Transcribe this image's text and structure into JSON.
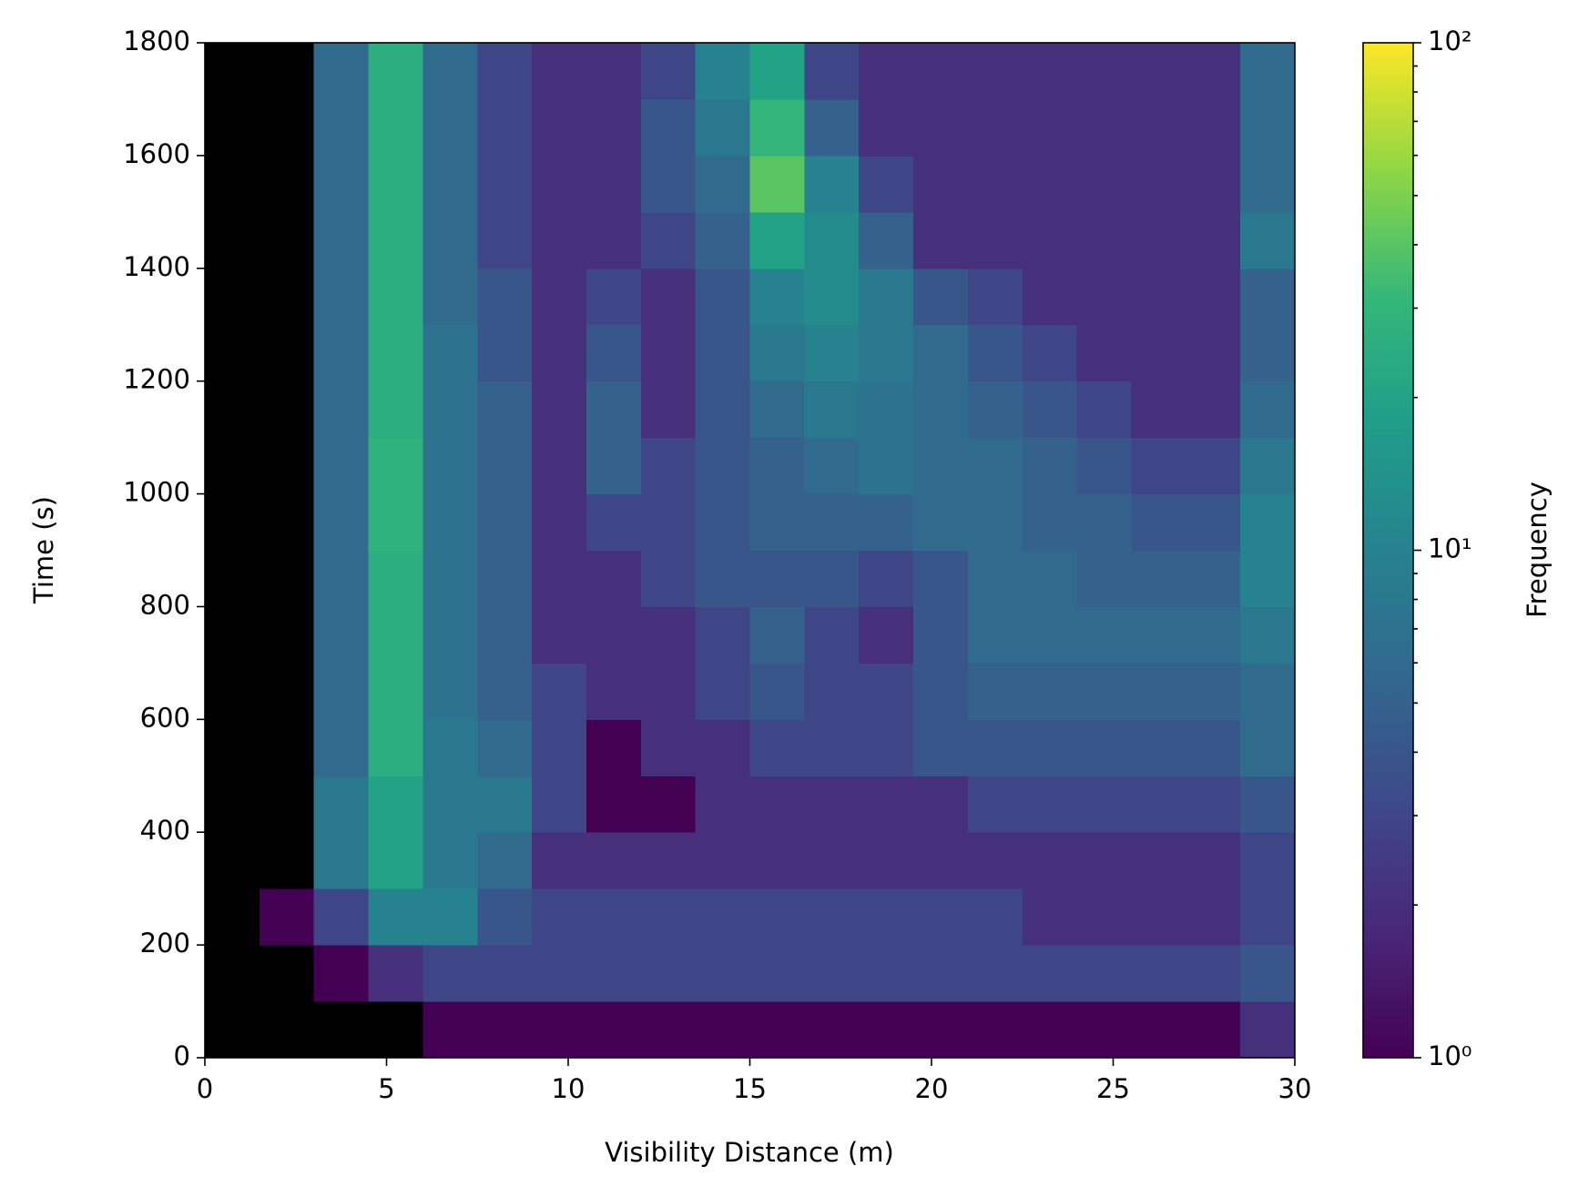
{
  "chart_data": {
    "type": "heatmap",
    "xlabel": "Visibility Distance (m)",
    "ylabel": "Time (s)",
    "xlim": [
      0,
      30
    ],
    "ylim": [
      0,
      1800
    ],
    "xticks": [
      0,
      5,
      10,
      15,
      20,
      25,
      30
    ],
    "yticks": [
      0,
      200,
      400,
      600,
      800,
      1000,
      1200,
      1400,
      1600,
      1800
    ],
    "x_edges": [
      0,
      1.5,
      3,
      4.5,
      6,
      7.5,
      9,
      10.5,
      12,
      13.5,
      15,
      16.5,
      18,
      19.5,
      21,
      22.5,
      24,
      25.5,
      27,
      28.5,
      30
    ],
    "y_edges": [
      0,
      100,
      200,
      300,
      400,
      500,
      600,
      700,
      800,
      900,
      1000,
      1100,
      1200,
      1300,
      1400,
      1500,
      1600,
      1700,
      1800
    ],
    "values": [
      [
        0,
        0,
        0,
        0,
        1,
        1,
        1,
        1,
        1,
        1,
        1,
        1,
        1,
        1,
        1,
        1,
        1,
        1,
        1,
        2
      ],
      [
        0,
        0,
        1,
        2,
        3,
        3,
        3,
        3,
        3,
        3,
        3,
        3,
        3,
        3,
        3,
        3,
        3,
        3,
        3,
        4
      ],
      [
        0,
        1,
        3,
        10,
        10,
        4,
        3,
        3,
        3,
        3,
        3,
        3,
        3,
        3,
        3,
        2,
        2,
        2,
        2,
        3
      ],
      [
        0,
        0,
        8,
        20,
        8,
        6,
        2,
        2,
        2,
        2,
        2,
        2,
        2,
        2,
        2,
        2,
        2,
        2,
        2,
        3
      ],
      [
        0,
        0,
        8,
        20,
        8,
        8,
        3,
        1,
        1,
        2,
        2,
        2,
        2,
        2,
        3,
        3,
        3,
        3,
        3,
        4
      ],
      [
        0,
        0,
        6,
        25,
        8,
        6,
        3,
        1,
        2,
        2,
        3,
        3,
        3,
        4,
        4,
        4,
        4,
        4,
        4,
        6
      ],
      [
        0,
        0,
        6,
        25,
        7,
        5,
        3,
        2,
        2,
        3,
        4,
        3,
        3,
        4,
        5,
        5,
        5,
        5,
        5,
        6
      ],
      [
        0,
        0,
        6,
        25,
        7,
        5,
        2,
        2,
        2,
        3,
        5,
        3,
        2,
        4,
        6,
        6,
        6,
        6,
        6,
        8
      ],
      [
        0,
        0,
        6,
        25,
        7,
        5,
        2,
        2,
        3,
        4,
        4,
        4,
        3,
        4,
        6,
        6,
        5,
        5,
        5,
        10
      ],
      [
        0,
        0,
        6,
        28,
        7,
        5,
        2,
        3,
        3,
        4,
        5,
        5,
        5,
        6,
        6,
        5,
        5,
        4,
        4,
        10
      ],
      [
        0,
        0,
        6,
        28,
        7,
        5,
        2,
        5,
        3,
        4,
        5,
        6,
        7,
        6,
        6,
        5,
        4,
        3,
        3,
        8
      ],
      [
        0,
        0,
        6,
        25,
        7,
        5,
        2,
        5,
        2,
        4,
        6,
        8,
        7,
        6,
        5,
        4,
        3,
        2,
        2,
        6
      ],
      [
        0,
        0,
        6,
        25,
        7,
        4,
        2,
        4,
        2,
        4,
        8,
        10,
        8,
        6,
        4,
        3,
        2,
        2,
        2,
        5
      ],
      [
        0,
        0,
        6,
        25,
        6,
        4,
        2,
        3,
        2,
        4,
        10,
        12,
        8,
        4,
        3,
        2,
        2,
        2,
        2,
        5
      ],
      [
        0,
        0,
        6,
        25,
        6,
        3,
        2,
        2,
        3,
        5,
        20,
        12,
        5,
        2,
        2,
        2,
        2,
        2,
        2,
        8
      ],
      [
        0,
        0,
        6,
        25,
        6,
        3,
        2,
        2,
        4,
        6,
        40,
        10,
        3,
        2,
        2,
        2,
        2,
        2,
        2,
        6
      ],
      [
        0,
        0,
        6,
        25,
        6,
        3,
        2,
        2,
        4,
        8,
        30,
        5,
        2,
        2,
        2,
        2,
        2,
        2,
        2,
        6
      ],
      [
        0,
        0,
        6,
        25,
        6,
        3,
        2,
        2,
        3,
        10,
        20,
        3,
        2,
        2,
        2,
        2,
        2,
        2,
        2,
        6
      ]
    ],
    "colormap": "viridis",
    "bad_color": "#000000",
    "colorbar": {
      "label": "Frequency",
      "scale": "log",
      "lim": [
        1,
        100
      ],
      "ticks": [
        {
          "value": 1,
          "label": "10⁰"
        },
        {
          "value": 10,
          "label": "10¹"
        },
        {
          "value": 100,
          "label": "10²"
        }
      ],
      "minor_ticks": [
        2,
        3,
        4,
        5,
        6,
        7,
        8,
        9,
        20,
        30,
        40,
        50,
        60,
        70,
        80,
        90
      ]
    }
  }
}
